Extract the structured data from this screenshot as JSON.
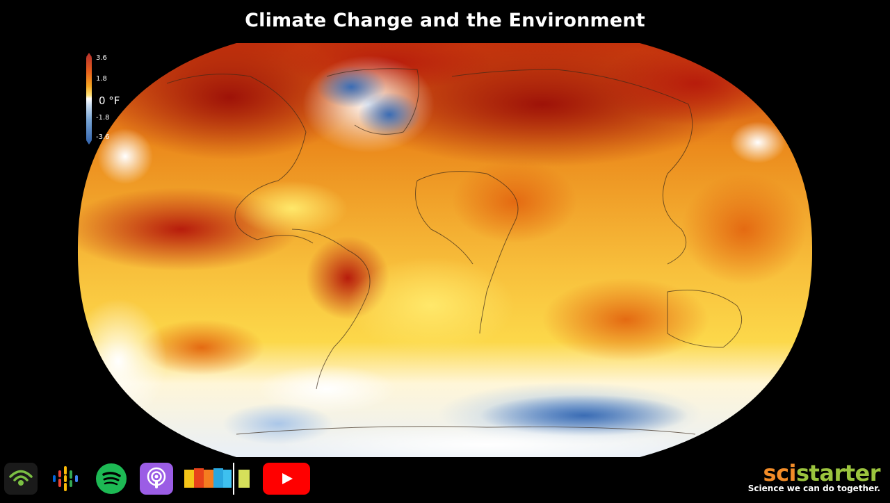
{
  "title": "Climate Change and the Environment",
  "legend": {
    "ticks": [
      "3.6",
      "1.8",
      "-1.8",
      "-3.6"
    ],
    "unit": "0 °F",
    "colors": {
      "hot": "#c0392b",
      "neutral": "#ffffff",
      "cold": "#3c6db4"
    }
  },
  "bottom_icons": [
    {
      "name": "podcast-wifi-icon",
      "bg": "#1a1a1a",
      "accent": "#7bc043"
    },
    {
      "name": "google-podcasts-icon",
      "bg": "#000000",
      "accent": "#4285f4"
    },
    {
      "name": "spotify-icon",
      "bg": "#1db954",
      "accent": "#000000"
    },
    {
      "name": "apple-podcasts-icon",
      "bg": "#9b5de5",
      "accent": "#ffffff"
    },
    {
      "name": "stitcher-icon",
      "bg": "#000000",
      "accent": "#f5a623"
    },
    {
      "name": "youtube-icon",
      "bg": "#ff0000",
      "accent": "#ffffff"
    }
  ],
  "brand": {
    "name_part1": "sci",
    "name_part2": "starter",
    "tagline": "Science we can do together."
  }
}
